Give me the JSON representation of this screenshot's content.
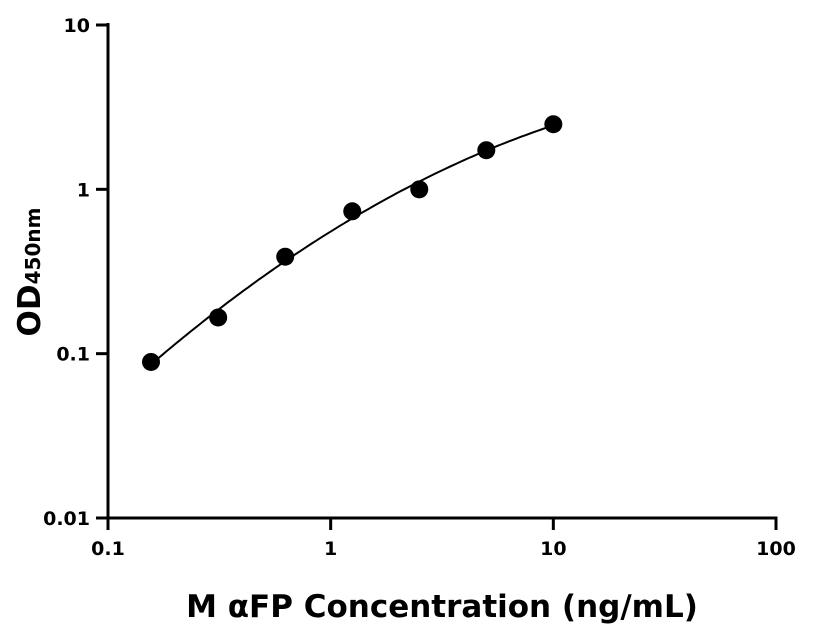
{
  "chart_data": {
    "type": "scatter",
    "title": "",
    "xlabel": "M αFP Concentration (ng/mL)",
    "ylabel": "OD",
    "ylabel_subscript": "450nm",
    "xscale": "log",
    "yscale": "log",
    "xlim": [
      0.1,
      100
    ],
    "ylim": [
      0.01,
      10
    ],
    "xticks": [
      0.1,
      1,
      10,
      100
    ],
    "xtick_labels": [
      "0.1",
      "1",
      "10",
      "100"
    ],
    "yticks": [
      0.01,
      0.1,
      1,
      10
    ],
    "ytick_labels": [
      "0.01",
      "0.1",
      "1",
      "10"
    ],
    "grid": false,
    "fit_curve": true,
    "x": [
      0.156,
      0.3125,
      0.625,
      1.25,
      2.5,
      5,
      10
    ],
    "y": [
      0.089,
      0.166,
      0.389,
      0.735,
      1.0,
      1.73,
      2.49
    ],
    "color": "#000000"
  }
}
